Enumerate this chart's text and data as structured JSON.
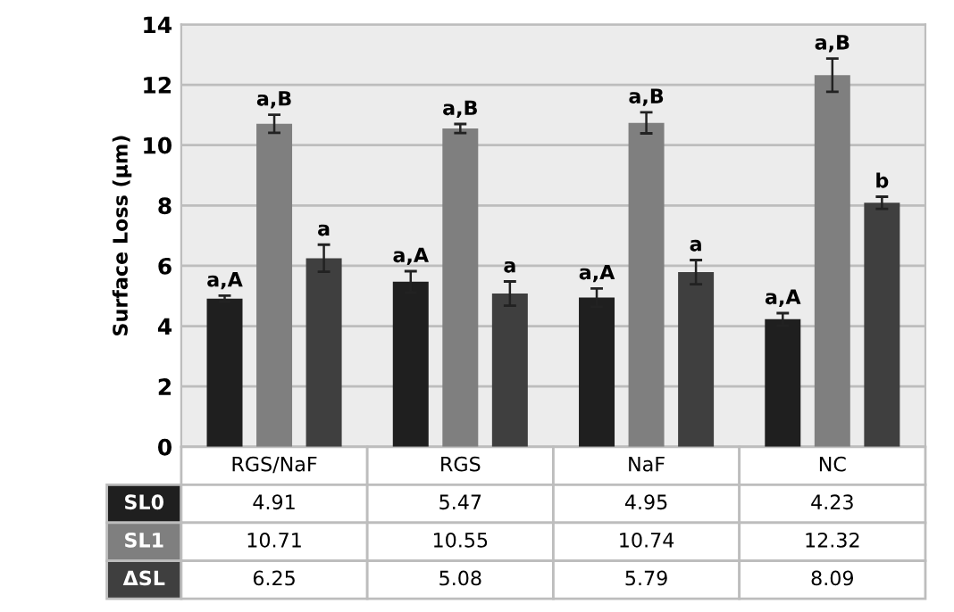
{
  "chart_data": {
    "type": "bar",
    "ylabel": "Surface Loss (μm)",
    "categories": [
      "RGS/NaF",
      "RGS",
      "NaF",
      "NC"
    ],
    "series": [
      {
        "name": "SL0",
        "color": "#1f1f1f",
        "values": [
          4.91,
          5.47,
          4.95,
          4.23
        ],
        "errors": [
          0.1,
          0.35,
          0.3,
          0.2
        ]
      },
      {
        "name": "SL1",
        "color": "#7f7f7f",
        "values": [
          10.71,
          10.55,
          10.74,
          12.32
        ],
        "errors": [
          0.3,
          0.15,
          0.35,
          0.55
        ]
      },
      {
        "name": "ΔSL",
        "color": "#3f3f3f",
        "values": [
          6.25,
          5.08,
          5.79,
          8.09
        ],
        "errors": [
          0.45,
          0.4,
          0.4,
          0.2
        ]
      }
    ],
    "ylim": [
      0,
      14
    ],
    "yticks": [
      0,
      2,
      4,
      6,
      8,
      10,
      12,
      14
    ],
    "grid": "y",
    "legend": "bottom",
    "data_labels": true,
    "tick_labels": "y",
    "annotations": [
      "a,A",
      "a,B",
      "a",
      "a,A",
      "a,B",
      "a",
      "a,A",
      "a,B",
      "a",
      "a,A",
      "a,B",
      "b"
    ]
  }
}
